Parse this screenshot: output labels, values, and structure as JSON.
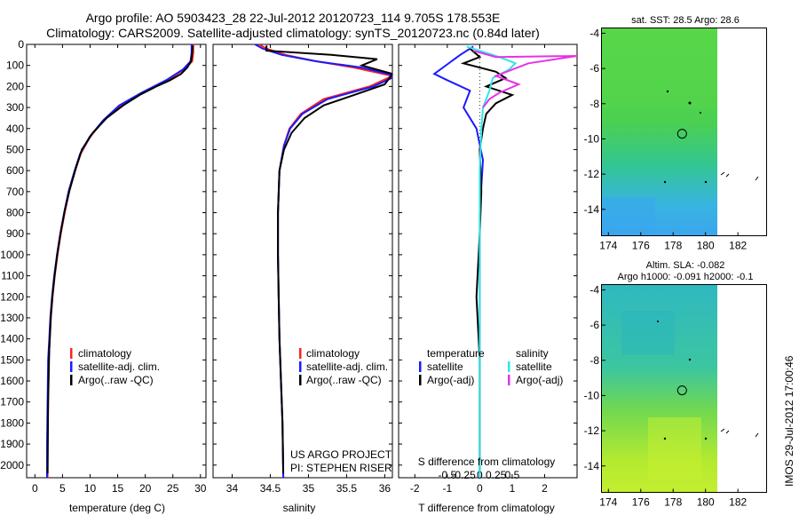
{
  "title_line1": "Argo profile: AO 5903423_28 22-Jul-2012 20120723_114 9.705S 178.553E",
  "title_line2": "Climatology: CARS2009. Satellite-adjusted climatology: synTS_20120723.nc (0.84d later)",
  "project_line1": "US ARGO PROJECT",
  "project_line2": "PI: STEPHEN RISER",
  "stamp": "IMOS 29-Jul-2012 17:00:46",
  "colors": {
    "climatology": "#ff2020",
    "satellite": "#1a1aff",
    "argo": "#000000",
    "sal_satellite": "#33e6e6",
    "sal_argo": "#e632e6"
  },
  "chart_data": [
    {
      "type": "line",
      "name": "temperature-profile",
      "xlabel": "temperature (deg C)",
      "xlim": [
        -1.5,
        31
      ],
      "xticks": [
        0,
        5,
        10,
        15,
        20,
        25,
        30
      ],
      "ylim": [
        2060,
        0
      ],
      "yticks": [
        0,
        100,
        200,
        300,
        400,
        500,
        600,
        700,
        800,
        900,
        1000,
        1100,
        1200,
        1300,
        1400,
        1500,
        1600,
        1700,
        1800,
        1900,
        2000
      ],
      "legend": [
        "climatology",
        "satellite-adj. clim.",
        "Argo(..raw -QC)"
      ],
      "series": [
        {
          "name": "climatology",
          "color": "#ff2020",
          "x": [
            28.7,
            28.7,
            28.5,
            27.0,
            24.0,
            19.5,
            15.5,
            12.5,
            10.0,
            8.3,
            7.3,
            6.2,
            5.4,
            4.7,
            4.1,
            3.6,
            3.2,
            2.9,
            2.7,
            2.5,
            2.4,
            2.3,
            2.3
          ],
          "y": [
            0,
            40,
            80,
            120,
            170,
            230,
            290,
            360,
            440,
            520,
            600,
            700,
            800,
            900,
            1000,
            1100,
            1200,
            1300,
            1400,
            1500,
            1700,
            1900,
            2060
          ]
        },
        {
          "name": "satellite-adj. clim.",
          "color": "#1a1aff",
          "x": [
            28.4,
            28.4,
            28.2,
            26.8,
            23.8,
            19.3,
            15.3,
            12.4,
            9.9,
            8.2,
            7.2,
            6.1,
            5.3,
            4.6,
            4.0,
            3.5,
            3.1,
            2.8,
            2.6,
            2.4,
            2.3,
            2.2,
            2.2
          ],
          "y": [
            0,
            40,
            80,
            120,
            170,
            230,
            290,
            360,
            440,
            520,
            600,
            700,
            800,
            900,
            1000,
            1100,
            1200,
            1300,
            1400,
            1500,
            1700,
            1900,
            2060
          ]
        },
        {
          "name": "Argo(..raw -QC)",
          "color": "#000000",
          "x": [
            28.6,
            28.5,
            28.3,
            27.6,
            26.5,
            24.5,
            22.0,
            19.0,
            16.0,
            13.0,
            10.5,
            8.5,
            7.4,
            6.3,
            5.4,
            4.7,
            4.1,
            3.6,
            3.2,
            2.9,
            2.6,
            2.4,
            2.3
          ],
          "y": [
            5,
            40,
            80,
            110,
            140,
            170,
            200,
            240,
            290,
            350,
            420,
            500,
            590,
            690,
            790,
            890,
            990,
            1090,
            1190,
            1290,
            1450,
            1700,
            2040
          ]
        }
      ]
    },
    {
      "type": "line",
      "name": "salinity-profile",
      "xlabel": "salinity",
      "xlim": [
        33.75,
        36.1
      ],
      "xticks": [
        34,
        34.5,
        35,
        35.5,
        36
      ],
      "ylim": [
        2060,
        0
      ],
      "legend": [
        "climatology",
        "satellite-adj. clim.",
        "Argo(..raw -QC)"
      ],
      "series": [
        {
          "name": "climatology",
          "color": "#ff2020",
          "x": [
            34.35,
            34.45,
            34.7,
            35.1,
            35.6,
            36.1,
            35.8,
            35.2,
            34.9,
            34.75,
            34.68,
            34.62,
            34.6,
            34.6,
            34.61,
            34.62,
            34.64,
            34.66,
            34.67
          ],
          "y": [
            0,
            20,
            50,
            80,
            110,
            150,
            200,
            260,
            330,
            400,
            480,
            600,
            800,
            1000,
            1200,
            1400,
            1600,
            1800,
            2060
          ]
        },
        {
          "name": "satellite-adj. clim.",
          "color": "#1a1aff",
          "x": [
            34.3,
            34.4,
            34.65,
            35.1,
            35.7,
            36.15,
            35.85,
            35.25,
            34.92,
            34.76,
            34.68,
            34.62,
            34.6,
            34.6,
            34.61,
            34.62,
            34.64,
            34.66,
            34.67
          ],
          "y": [
            0,
            20,
            50,
            80,
            110,
            150,
            200,
            260,
            330,
            400,
            480,
            600,
            800,
            1000,
            1200,
            1400,
            1600,
            1800,
            2060
          ]
        },
        {
          "name": "Argo(..raw -QC)",
          "color": "#000000",
          "x": [
            34.45,
            34.45,
            35.3,
            35.9,
            35.7,
            36.1,
            36.0,
            35.6,
            35.2,
            34.95,
            34.78,
            34.68,
            34.62,
            34.6,
            34.6,
            34.61,
            34.62,
            34.64,
            34.66,
            34.67
          ],
          "y": [
            5,
            30,
            50,
            70,
            100,
            140,
            190,
            240,
            290,
            350,
            420,
            500,
            600,
            800,
            1000,
            1200,
            1400,
            1600,
            1800,
            2040
          ]
        }
      ]
    },
    {
      "type": "line",
      "name": "difference-profile",
      "xlabel_top": "S difference from climatology",
      "xlabel_bottom": "T difference from climatology",
      "xlim": [
        -2.5,
        3
      ],
      "xticks": [
        -2,
        -1,
        0,
        1,
        2
      ],
      "xticks_top": [
        -0.5,
        -0.25,
        0,
        0.25,
        0.5
      ],
      "xticks_top_labels": [
        "-0.5",
        "-0.25",
        "0",
        "0.25",
        "0.5"
      ],
      "ylim": [
        2060,
        0
      ],
      "legend_temperature": [
        "temperature",
        "satellite",
        "Argo(-adj)"
      ],
      "legend_salinity": [
        "salinity",
        "satellite",
        "Argo(-adj)"
      ],
      "series": [
        {
          "name": "temperature satellite",
          "color": "#1a1aff",
          "x": [
            -0.2,
            -0.6,
            -1.4,
            -1.0,
            -0.3,
            -0.5,
            -0.1,
            0.1,
            0.0,
            0.0
          ],
          "y": [
            10,
            50,
            140,
            170,
            220,
            300,
            400,
            550,
            800,
            2060
          ]
        },
        {
          "name": "temperature Argo(-adj)",
          "color": "#000000",
          "x": [
            -0.3,
            0.0,
            -0.5,
            0.5,
            0.8,
            0.2,
            1.0,
            0.5,
            0.2,
            0.1,
            0.0,
            0.05,
            0.0,
            -0.1,
            0.0,
            0.0
          ],
          "y": [
            20,
            60,
            90,
            130,
            160,
            200,
            240,
            280,
            330,
            400,
            500,
            700,
            900,
            1200,
            1500,
            2040
          ]
        },
        {
          "name": "salinity satellite",
          "color": "#33e6e6",
          "x": [
            -0.4,
            0.6,
            1.1,
            0.9,
            0.4,
            0.3,
            0.1,
            0.05,
            0.0,
            0.0,
            0.0
          ],
          "y": [
            10,
            60,
            90,
            120,
            160,
            220,
            300,
            400,
            600,
            1000,
            2060
          ]
        },
        {
          "name": "salinity Argo(-adj)",
          "color": "#e632e6",
          "x": [
            -0.2,
            0.5,
            3.0,
            1.5,
            0.5,
            1.2,
            0.6,
            0.3,
            0.1
          ],
          "y": [
            30,
            60,
            55,
            90,
            150,
            190,
            230,
            260,
            300
          ]
        }
      ]
    },
    {
      "type": "heatmap",
      "name": "sst-map",
      "title": "sat. SST: 28.5 Argo: 28.6",
      "xlim": [
        173.6,
        183.8
      ],
      "ylim": [
        -15.5,
        -3.7
      ],
      "xticks": [
        174,
        176,
        178,
        180,
        182
      ],
      "yticks": [
        -4,
        -6,
        -8,
        -10,
        -12,
        -14
      ],
      "marker": {
        "lon": 178.553,
        "lat": -9.705
      }
    },
    {
      "type": "heatmap",
      "name": "sla-map",
      "title_line1": "Altim. SLA: -0.082",
      "title_line2": "Argo h1000: -0.091 h2000: -0.1",
      "xlim": [
        173.6,
        183.8
      ],
      "ylim": [
        -15.5,
        -3.7
      ],
      "xticks": [
        174,
        176,
        178,
        180,
        182
      ],
      "yticks": [
        -4,
        -6,
        -8,
        -10,
        -12,
        -14
      ],
      "marker": {
        "lon": 178.553,
        "lat": -9.705
      }
    }
  ]
}
